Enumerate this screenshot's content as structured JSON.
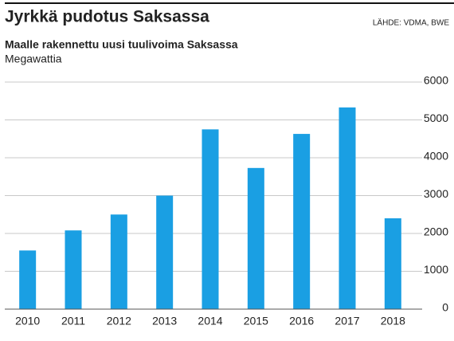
{
  "chart_data": {
    "type": "bar",
    "title": "Jyrkkä pudotus Saksassa",
    "source": "LÄHDE: VDMA, BWE",
    "subtitle": "Maalle rakennettu uusi tuulivoima Saksassa",
    "unit": "Megawattia",
    "categories": [
      "2010",
      "2011",
      "2012",
      "2013",
      "2014",
      "2015",
      "2016",
      "2017",
      "2018"
    ],
    "values": [
      1550,
      2080,
      2500,
      3000,
      4750,
      3730,
      4630,
      5330,
      2400
    ],
    "color": "#1a9fe3",
    "ylim": [
      0,
      6000
    ],
    "yticks": [
      0,
      1000,
      2000,
      3000,
      4000,
      5000,
      6000
    ],
    "grid": true
  }
}
